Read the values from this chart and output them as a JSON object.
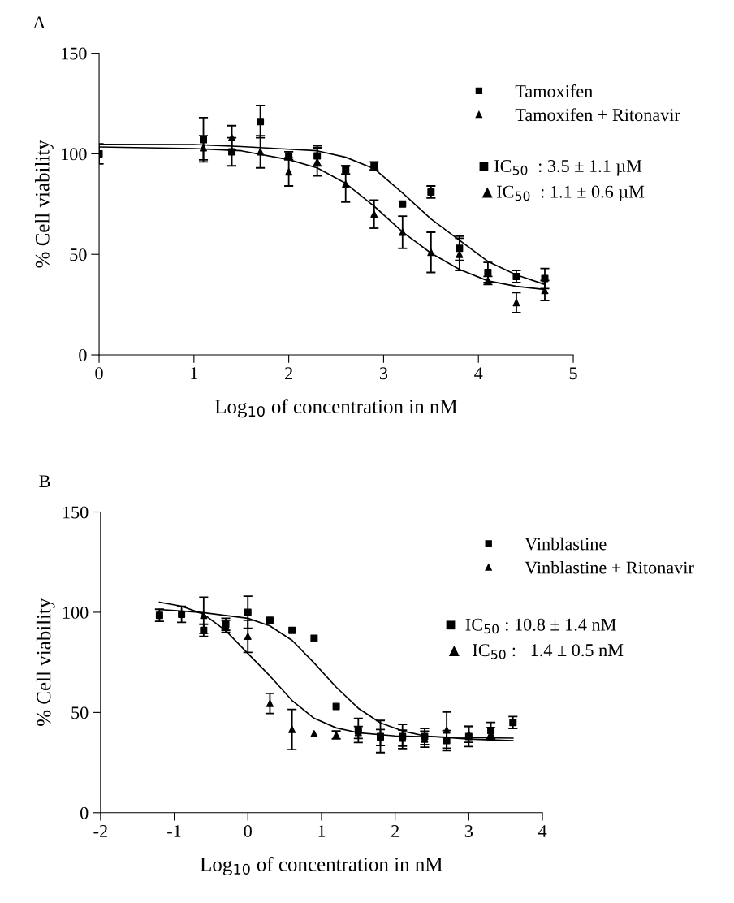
{
  "chart_data": [
    {
      "type": "scatter",
      "title": "A",
      "xlabel": "Log$_{10}$ of concentration in nM",
      "ylabel": "% Cell viability",
      "xlim": [
        0,
        5
      ],
      "xticks": [
        0,
        1,
        2,
        3,
        4,
        5
      ],
      "ylim": [
        0,
        150
      ],
      "yticks": [
        0,
        50,
        100,
        150
      ],
      "legend": "top right",
      "grid": false,
      "annotations": [
        "■ IC$_{50}$  : 3.5 ± 1.1 µM",
        "▲IC$_{50}$  : 1.1 ± 0.6 µM"
      ],
      "series": [
        {
          "name": "Tamoxifen",
          "marker": "square",
          "color": "#000000",
          "x": [
            0,
            1.1,
            1.4,
            1.7,
            2.0,
            2.3,
            2.6,
            2.9,
            3.2,
            3.5,
            3.8,
            4.1,
            4.4,
            4.7
          ],
          "values": [
            100,
            107,
            101,
            116,
            99,
            99,
            92,
            94,
            75,
            81,
            53,
            41,
            39,
            38
          ],
          "errors": [
            5,
            11,
            7,
            8,
            2,
            5,
            2,
            2,
            null,
            3,
            6,
            5,
            3,
            5
          ]
        },
        {
          "name": "Tamoxifen + Ritonavir",
          "marker": "triangle",
          "color": "#000000",
          "x": [
            1.1,
            1.4,
            1.7,
            2.0,
            2.3,
            2.6,
            2.9,
            3.2,
            3.5,
            3.8,
            4.1,
            4.4,
            4.7
          ],
          "values": [
            103,
            108,
            101,
            91,
            96,
            85,
            70,
            61,
            51,
            50,
            37,
            26,
            32
          ],
          "errors": [
            6,
            6,
            8,
            7,
            7,
            9,
            7,
            8,
            10,
            8,
            2,
            5,
            5
          ]
        },
        {
          "type": "line",
          "color": "#000000",
          "x": [
            0,
            1,
            1.5,
            2.0,
            2.3,
            2.6,
            2.9,
            3.2,
            3.5,
            3.8,
            4.1,
            4.4,
            4.7
          ],
          "values": [
            104.7,
            104.6,
            103.6,
            102.3,
            101.5,
            98.3,
            92.6,
            80.5,
            67.6,
            57,
            46.5,
            39.8,
            35
          ]
        },
        {
          "type": "line",
          "color": "#000000",
          "x": [
            0,
            1,
            1.5,
            2.0,
            2.3,
            2.6,
            2.9,
            3.2,
            3.5,
            3.8,
            4.1,
            4.4,
            4.7
          ],
          "values": [
            103.4,
            102.6,
            101.5,
            97.1,
            93,
            85.3,
            74,
            61.1,
            50.6,
            42.5,
            36.8,
            34.1,
            32.5
          ]
        }
      ]
    },
    {
      "type": "scatter",
      "title": "B",
      "xlabel": "Log$_{10}$ of concentration in nM",
      "ylabel": "% Cell viability",
      "xlim": [
        -2,
        4
      ],
      "xticks": [
        -2,
        -1,
        0,
        1,
        2,
        3,
        4
      ],
      "ylim": [
        0,
        150
      ],
      "yticks": [
        0,
        50,
        100,
        150
      ],
      "legend": "top right",
      "grid": false,
      "annotations": [
        "■  IC$_{50}$ : 10.8 ± 1.4 nM",
        "▲  IC$_{50}$ :   1.4 ± 0.5 nM"
      ],
      "series": [
        {
          "name": "Vinblastine",
          "marker": "square",
          "color": "#000000",
          "x": [
            -1.2,
            -0.9,
            -0.6,
            -0.3,
            0,
            0.3,
            0.6,
            0.9,
            1.2,
            1.5,
            1.8,
            2.1,
            2.4,
            2.7,
            3.0,
            3.3,
            3.6
          ],
          "values": [
            98.5,
            99,
            91,
            94,
            100,
            96,
            91,
            87,
            53,
            41,
            38,
            38,
            38,
            36,
            38,
            41,
            45
          ],
          "errors": [
            3,
            4,
            3,
            3,
            8,
            null,
            null,
            null,
            null,
            6,
            8,
            6,
            4,
            5,
            5,
            4,
            3
          ]
        },
        {
          "name": "Vinblastine + Ritonavir",
          "marker": "triangle",
          "color": "#000000",
          "x": [
            -0.6,
            -0.3,
            0,
            0.3,
            0.6,
            0.9,
            1.2,
            1.5,
            1.8,
            2.1,
            2.4,
            2.7,
            3.0,
            3.3
          ],
          "values": [
            98.5,
            93,
            88,
            54.5,
            41.5,
            39.4,
            38.8,
            40,
            37.5,
            37.2,
            36.7,
            41.2,
            39.1,
            39.4
          ],
          "errors": [
            9,
            3,
            8,
            5,
            10,
            null,
            2,
            3,
            4,
            4,
            4,
            9,
            4,
            3
          ]
        },
        {
          "type": "line",
          "color": "#000000",
          "x": [
            -1.2,
            -0.6,
            0,
            0.3,
            0.6,
            0.9,
            1.2,
            1.5,
            1.8,
            2.1,
            2.4,
            3.0,
            3.6
          ],
          "values": [
            101.4,
            99.8,
            97,
            93.2,
            86,
            74.7,
            62.6,
            52.1,
            44.8,
            40.8,
            38.3,
            36.7,
            35.9
          ]
        },
        {
          "type": "line",
          "color": "#000000",
          "x": [
            -1.2,
            -0.9,
            -0.6,
            -0.3,
            0,
            0.3,
            0.6,
            0.9,
            1.2,
            1.5,
            2.0,
            3.0,
            3.6
          ],
          "values": [
            105,
            103,
            99,
            90.8,
            79.5,
            68.2,
            56,
            47.1,
            42.3,
            39.9,
            38.3,
            37.5,
            37.2
          ]
        }
      ]
    }
  ]
}
